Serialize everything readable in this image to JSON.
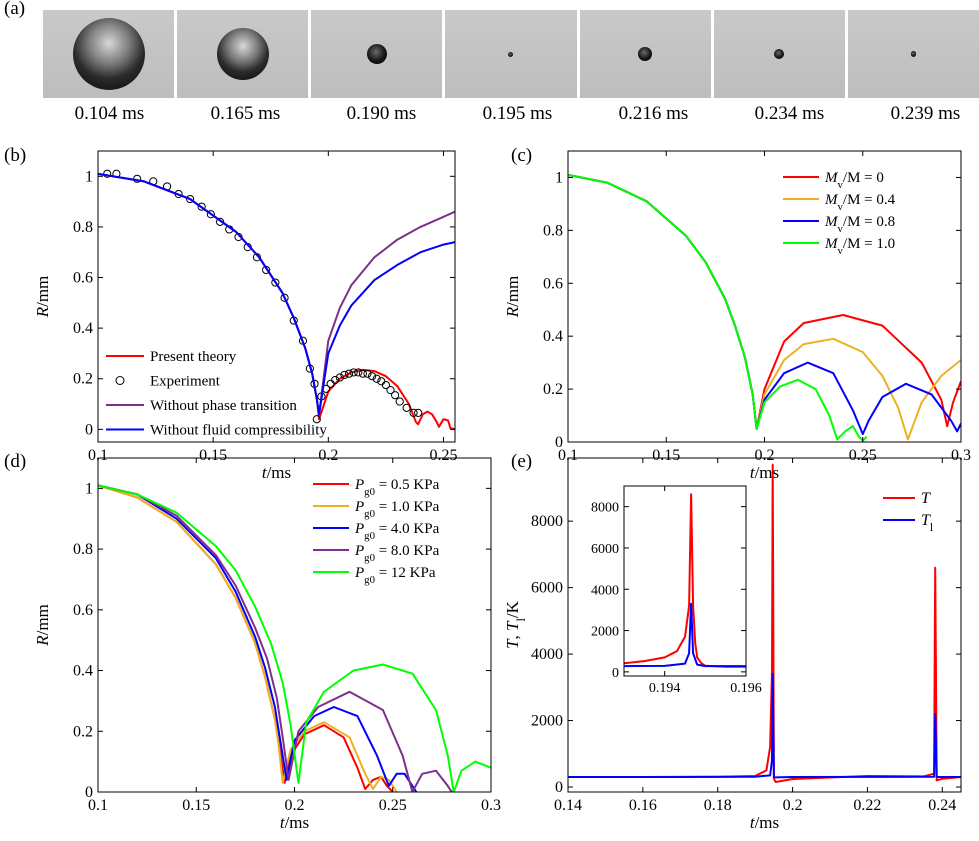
{
  "panel_labels": [
    "(a)",
    "(b)",
    "(c)",
    "(d)",
    "(e)"
  ],
  "photo_times": [
    "0.104 ms",
    "0.165 ms",
    "0.190 ms",
    "0.195 ms",
    "0.216 ms",
    "0.234 ms",
    "0.239 ms"
  ],
  "photo_radius_rel": [
    1.0,
    0.72,
    0.28,
    0.06,
    0.2,
    0.14,
    0.07
  ],
  "chart_data": [
    {
      "panel": "(b)",
      "type": "line",
      "xlabel_var": "t",
      "xlabel_unit": "/ms",
      "ylabel_var": "R",
      "ylabel_unit": "/mm",
      "xlim": [
        0.1,
        0.255
      ],
      "ylim": [
        -0.05,
        1.1
      ],
      "xticks": [
        "0.1",
        "0.15",
        "0.2",
        "0.25"
      ],
      "yticks": [
        "0",
        "0.2",
        "0.4",
        "0.6",
        "0.8",
        "1"
      ],
      "legend_position": "bottom-left",
      "series": [
        {
          "name": "Present theory",
          "color": "#ff0000",
          "kind": "line",
          "x": [
            0.1,
            0.12,
            0.14,
            0.16,
            0.17,
            0.18,
            0.185,
            0.19,
            0.193,
            0.195,
            0.196,
            0.2,
            0.205,
            0.21,
            0.215,
            0.22,
            0.225,
            0.23,
            0.235,
            0.238,
            0.239,
            0.241,
            0.243,
            0.245,
            0.247,
            0.248,
            0.25,
            0.252,
            0.253,
            0.255
          ],
          "y": [
            1.01,
            0.98,
            0.91,
            0.78,
            0.68,
            0.54,
            0.44,
            0.32,
            0.22,
            0.12,
            0.04,
            0.15,
            0.2,
            0.225,
            0.235,
            0.23,
            0.21,
            0.17,
            0.1,
            0.03,
            0.02,
            0.06,
            0.07,
            0.06,
            0.03,
            0.01,
            0.04,
            0.035,
            0.005,
            0.0
          ]
        },
        {
          "name": "Experiment",
          "color": "#000000",
          "kind": "marker",
          "x": [
            0.104,
            0.108,
            0.117,
            0.124,
            0.13,
            0.135,
            0.14,
            0.145,
            0.149,
            0.153,
            0.157,
            0.161,
            0.165,
            0.169,
            0.173,
            0.177,
            0.181,
            0.185,
            0.189,
            0.192,
            0.194,
            0.195,
            0.197,
            0.199,
            0.201,
            0.203,
            0.205,
            0.207,
            0.209,
            0.211,
            0.213,
            0.215,
            0.217,
            0.219,
            0.221,
            0.223,
            0.225,
            0.227,
            0.229,
            0.231,
            0.234,
            0.237,
            0.239
          ],
          "y": [
            1.01,
            1.01,
            0.99,
            0.98,
            0.96,
            0.93,
            0.91,
            0.88,
            0.85,
            0.82,
            0.79,
            0.76,
            0.72,
            0.68,
            0.63,
            0.58,
            0.52,
            0.43,
            0.35,
            0.24,
            0.18,
            0.04,
            0.13,
            0.16,
            0.18,
            0.195,
            0.205,
            0.215,
            0.22,
            0.225,
            0.225,
            0.22,
            0.22,
            0.21,
            0.2,
            0.19,
            0.175,
            0.155,
            0.135,
            0.11,
            0.085,
            0.065,
            0.065
          ]
        },
        {
          "name": "Without phase transition",
          "color": "#7e2f8e",
          "kind": "line",
          "x": [
            0.1,
            0.12,
            0.14,
            0.16,
            0.17,
            0.18,
            0.185,
            0.19,
            0.193,
            0.195,
            0.196,
            0.2,
            0.205,
            0.21,
            0.22,
            0.23,
            0.24,
            0.25,
            0.255
          ],
          "y": [
            1.01,
            0.98,
            0.91,
            0.78,
            0.68,
            0.54,
            0.44,
            0.32,
            0.22,
            0.12,
            0.06,
            0.35,
            0.48,
            0.57,
            0.68,
            0.75,
            0.8,
            0.84,
            0.86
          ]
        },
        {
          "name": "Without fluid compressibility",
          "color": "#0000ff",
          "kind": "line",
          "x": [
            0.1,
            0.12,
            0.14,
            0.16,
            0.17,
            0.18,
            0.185,
            0.19,
            0.193,
            0.195,
            0.196,
            0.2,
            0.205,
            0.21,
            0.22,
            0.23,
            0.24,
            0.25,
            0.255
          ],
          "y": [
            1.01,
            0.98,
            0.91,
            0.78,
            0.68,
            0.54,
            0.44,
            0.32,
            0.22,
            0.12,
            0.06,
            0.3,
            0.41,
            0.49,
            0.59,
            0.65,
            0.7,
            0.73,
            0.74
          ]
        }
      ]
    },
    {
      "panel": "(c)",
      "type": "line",
      "xlabel_var": "t",
      "xlabel_unit": "/ms",
      "ylabel_var": "R",
      "ylabel_unit": "/mm",
      "xlim": [
        0.1,
        0.3
      ],
      "ylim": [
        0,
        1.1
      ],
      "xticks": [
        "0.1",
        "0.15",
        "0.2",
        "0.25",
        "0.3"
      ],
      "yticks": [
        "0",
        "0.2",
        "0.4",
        "0.6",
        "0.8",
        "1"
      ],
      "legend_position": "top-right",
      "series": [
        {
          "name": "M_v/M = 0",
          "legend_var": "M",
          "legend_sub": "v",
          "legend_rest": "/M = 0",
          "color": "#ff0000",
          "x": [
            0.1,
            0.12,
            0.14,
            0.16,
            0.17,
            0.18,
            0.185,
            0.19,
            0.194,
            0.196,
            0.2,
            0.21,
            0.22,
            0.24,
            0.26,
            0.28,
            0.29,
            0.293,
            0.296,
            0.3
          ],
          "y": [
            1.01,
            0.98,
            0.91,
            0.78,
            0.68,
            0.54,
            0.44,
            0.32,
            0.18,
            0.05,
            0.2,
            0.38,
            0.45,
            0.48,
            0.44,
            0.3,
            0.16,
            0.06,
            0.15,
            0.23
          ]
        },
        {
          "name": "M_v/M = 0.4",
          "legend_var": "M",
          "legend_sub": "v",
          "legend_rest": "/M = 0.4",
          "color": "#edb120",
          "x": [
            0.1,
            0.12,
            0.14,
            0.16,
            0.17,
            0.18,
            0.185,
            0.19,
            0.194,
            0.196,
            0.2,
            0.21,
            0.22,
            0.235,
            0.25,
            0.26,
            0.268,
            0.273,
            0.28,
            0.29,
            0.3
          ],
          "y": [
            1.01,
            0.98,
            0.91,
            0.78,
            0.68,
            0.54,
            0.44,
            0.32,
            0.18,
            0.05,
            0.18,
            0.31,
            0.37,
            0.39,
            0.34,
            0.25,
            0.13,
            0.01,
            0.15,
            0.25,
            0.31
          ]
        },
        {
          "name": "M_v/M = 0.8",
          "legend_var": "M",
          "legend_sub": "v",
          "legend_rest": "/M = 0.8",
          "color": "#0000ff",
          "x": [
            0.1,
            0.12,
            0.14,
            0.16,
            0.17,
            0.18,
            0.185,
            0.19,
            0.194,
            0.196,
            0.2,
            0.21,
            0.222,
            0.235,
            0.245,
            0.25,
            0.253,
            0.26,
            0.272,
            0.285,
            0.295,
            0.298,
            0.3
          ],
          "y": [
            1.01,
            0.98,
            0.91,
            0.78,
            0.68,
            0.54,
            0.44,
            0.32,
            0.18,
            0.05,
            0.16,
            0.26,
            0.3,
            0.26,
            0.12,
            0.03,
            0.08,
            0.17,
            0.22,
            0.18,
            0.08,
            0.04,
            0.07
          ]
        },
        {
          "name": "M_v/M = 1.0",
          "legend_var": "M",
          "legend_sub": "v",
          "legend_rest": "/M = 1.0",
          "color": "#00ff00",
          "x": [
            0.1,
            0.12,
            0.14,
            0.16,
            0.17,
            0.18,
            0.185,
            0.19,
            0.194,
            0.196,
            0.2,
            0.208,
            0.217,
            0.226,
            0.233,
            0.237,
            0.241,
            0.245,
            0.248,
            0.25,
            0.252
          ],
          "y": [
            1.01,
            0.98,
            0.91,
            0.78,
            0.68,
            0.54,
            0.44,
            0.32,
            0.18,
            0.05,
            0.15,
            0.21,
            0.235,
            0.2,
            0.1,
            0.01,
            0.04,
            0.06,
            0.02,
            0.005,
            0.02
          ]
        }
      ]
    },
    {
      "panel": "(d)",
      "type": "line",
      "xlabel_var": "t",
      "xlabel_unit": "/ms",
      "ylabel_var": "R",
      "ylabel_unit": "/mm",
      "xlim": [
        0.1,
        0.3
      ],
      "ylim": [
        0,
        1.1
      ],
      "xticks": [
        "0.1",
        "0.15",
        "0.2",
        "0.25",
        "0.3"
      ],
      "yticks": [
        "0",
        "0.2",
        "0.4",
        "0.6",
        "0.8",
        "1"
      ],
      "legend_position": "top-right",
      "series": [
        {
          "name": "P_g0 = 0.5 KPa",
          "legend_var": "P",
          "legend_sub": "g0",
          "legend_rest": " = 0.5 KPa",
          "color": "#ff0000",
          "x": [
            0.1,
            0.12,
            0.14,
            0.16,
            0.17,
            0.18,
            0.185,
            0.19,
            0.193,
            0.195,
            0.198,
            0.205,
            0.215,
            0.225,
            0.232,
            0.236,
            0.24,
            0.244,
            0.247,
            0.25
          ],
          "y": [
            1.01,
            0.97,
            0.89,
            0.75,
            0.64,
            0.49,
            0.38,
            0.24,
            0.12,
            0.03,
            0.12,
            0.19,
            0.22,
            0.18,
            0.08,
            0.01,
            0.04,
            0.05,
            0.02,
            0.0
          ]
        },
        {
          "name": "P_g0 = 1.0 KPa",
          "legend_var": "P",
          "legend_sub": "g0",
          "legend_rest": " = 1.0 KPa",
          "color": "#edb120",
          "x": [
            0.1,
            0.12,
            0.14,
            0.16,
            0.17,
            0.18,
            0.185,
            0.19,
            0.192,
            0.194,
            0.198,
            0.205,
            0.215,
            0.228,
            0.236,
            0.24,
            0.244,
            0.248,
            0.252
          ],
          "y": [
            1.01,
            0.97,
            0.89,
            0.75,
            0.64,
            0.49,
            0.38,
            0.24,
            0.15,
            0.03,
            0.14,
            0.2,
            0.23,
            0.18,
            0.06,
            0.01,
            0.05,
            0.04,
            0.0
          ]
        },
        {
          "name": "P_g0 = 4.0 KPa",
          "legend_var": "P",
          "legend_sub": "g0",
          "legend_rest": " = 4.0 KPa",
          "color": "#0000ff",
          "x": [
            0.1,
            0.12,
            0.14,
            0.16,
            0.17,
            0.18,
            0.185,
            0.19,
            0.193,
            0.196,
            0.2,
            0.21,
            0.22,
            0.232,
            0.242,
            0.248,
            0.252,
            0.256,
            0.26,
            0.262
          ],
          "y": [
            1.01,
            0.98,
            0.9,
            0.77,
            0.66,
            0.51,
            0.41,
            0.28,
            0.16,
            0.04,
            0.17,
            0.25,
            0.28,
            0.25,
            0.12,
            0.02,
            0.06,
            0.06,
            0.02,
            0.0
          ]
        },
        {
          "name": "P_g0 = 8.0 KPa",
          "legend_var": "P",
          "legend_sub": "g0",
          "legend_rest": " = 8.0 KPa",
          "color": "#7e2f8e",
          "x": [
            0.1,
            0.12,
            0.14,
            0.16,
            0.17,
            0.18,
            0.186,
            0.191,
            0.194,
            0.197,
            0.202,
            0.212,
            0.228,
            0.245,
            0.255,
            0.26,
            0.265,
            0.272,
            0.278,
            0.28
          ],
          "y": [
            1.01,
            0.98,
            0.91,
            0.78,
            0.68,
            0.54,
            0.44,
            0.31,
            0.18,
            0.04,
            0.2,
            0.28,
            0.33,
            0.27,
            0.12,
            0.0,
            0.06,
            0.07,
            0.02,
            0.0
          ]
        },
        {
          "name": "P_g0 = 12 KPa",
          "legend_var": "P",
          "legend_sub": "g0",
          "legend_rest": " = 12 KPa",
          "color": "#00ff00",
          "x": [
            0.1,
            0.12,
            0.14,
            0.16,
            0.17,
            0.18,
            0.188,
            0.194,
            0.198,
            0.202,
            0.206,
            0.215,
            0.23,
            0.245,
            0.26,
            0.272,
            0.278,
            0.281,
            0.285,
            0.292,
            0.3
          ],
          "y": [
            1.01,
            0.98,
            0.92,
            0.81,
            0.73,
            0.61,
            0.49,
            0.36,
            0.22,
            0.03,
            0.23,
            0.33,
            0.4,
            0.42,
            0.39,
            0.27,
            0.12,
            0.0,
            0.07,
            0.1,
            0.08
          ]
        }
      ]
    },
    {
      "panel": "(e)",
      "type": "line",
      "xlabel_var": "t",
      "xlabel_unit": "/ms",
      "ylabel_T": "T",
      "ylabel_sep": ", ",
      "ylabel_Tl": "T",
      "ylabel_Tl_sub": "l",
      "ylabel_unit": "/K",
      "xlim": [
        0.14,
        0.245
      ],
      "ylim": [
        -150,
        9900
      ],
      "xticks": [
        "0.14",
        "0.16",
        "0.18",
        "0.2",
        "0.22",
        "0.24"
      ],
      "yticks": [
        "0",
        "2000",
        "4000",
        "6000",
        "8000"
      ],
      "legend_position": "top-right",
      "series": [
        {
          "name": "T",
          "legend_var": "T",
          "legend_sub": "",
          "color": "#ff0000",
          "x": [
            0.14,
            0.16,
            0.18,
            0.19,
            0.193,
            0.194,
            0.1945,
            0.1947,
            0.195,
            0.1955,
            0.2,
            0.22,
            0.235,
            0.2378,
            0.2381,
            0.2385,
            0.24,
            0.245
          ],
          "y": [
            300,
            300,
            310,
            330,
            500,
            1200,
            3500,
            9700,
            250,
            150,
            240,
            330,
            320,
            400,
            6600,
            200,
            250,
            300
          ]
        },
        {
          "name": "T_l",
          "legend_var": "T",
          "legend_sub": "l",
          "color": "#0000ff",
          "x": [
            0.14,
            0.16,
            0.18,
            0.19,
            0.194,
            0.1945,
            0.1947,
            0.195,
            0.1955,
            0.2,
            0.22,
            0.2378,
            0.2381,
            0.2385,
            0.24,
            0.245
          ],
          "y": [
            300,
            300,
            305,
            310,
            350,
            800,
            3400,
            300,
            290,
            300,
            305,
            310,
            2200,
            300,
            300,
            300
          ]
        }
      ],
      "inset": {
        "xlim": [
          0.193,
          0.196
        ],
        "ylim": [
          -200,
          9000
        ],
        "xticks": [
          "0.194",
          "0.196"
        ],
        "yticks": [
          "0",
          "2000",
          "4000",
          "6000",
          "8000"
        ],
        "series": [
          {
            "name": "T",
            "color": "#ff0000",
            "x": [
              0.193,
              0.1935,
              0.194,
              0.1943,
              0.1945,
              0.1946,
              0.19465,
              0.1947,
              0.19475,
              0.1948,
              0.1949,
              0.195,
              0.1955,
              0.196
            ],
            "y": [
              420,
              520,
              700,
              1000,
              1700,
              3200,
              8600,
              3200,
              1400,
              700,
              420,
              300,
              250,
              250
            ]
          },
          {
            "name": "T_l",
            "color": "#0000ff",
            "x": [
              0.193,
              0.194,
              0.1945,
              0.1946,
              0.19465,
              0.1947,
              0.1948,
              0.195,
              0.196
            ],
            "y": [
              280,
              290,
              400,
              900,
              3300,
              900,
              350,
              280,
              280
            ]
          }
        ]
      }
    }
  ]
}
